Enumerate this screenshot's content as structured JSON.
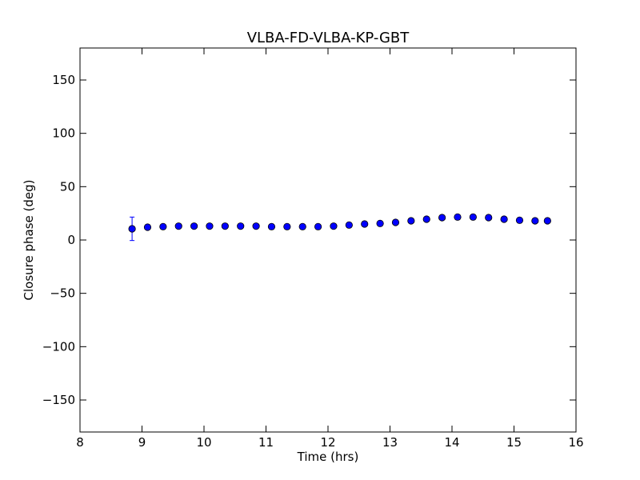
{
  "chart_data": {
    "type": "scatter",
    "title": "VLBA-FD-VLBA-KP-GBT",
    "xlabel": "Time (hrs)",
    "ylabel": "Closure phase (deg)",
    "xlim": [
      8,
      16
    ],
    "ylim": [
      -180,
      180
    ],
    "xticks": [
      8,
      9,
      10,
      11,
      12,
      13,
      14,
      15,
      16
    ],
    "xtick_labels": [
      "8",
      "9",
      "10",
      "11",
      "12",
      "13",
      "14",
      "15",
      "16"
    ],
    "yticks": [
      -150,
      -100,
      -50,
      0,
      50,
      100,
      150
    ],
    "ytick_labels": [
      "−150",
      "−100",
      "−50",
      "0",
      "50",
      "100",
      "150"
    ],
    "grid": false,
    "legend": "none",
    "marker_color": "#0000ff",
    "points": [
      {
        "x": 8.84,
        "y": 10.5,
        "err": 11
      },
      {
        "x": 9.09,
        "y": 12,
        "err": 1.5
      },
      {
        "x": 9.34,
        "y": 12.5,
        "err": 1.5
      },
      {
        "x": 9.59,
        "y": 13,
        "err": 1.5
      },
      {
        "x": 9.84,
        "y": 13,
        "err": 1.5
      },
      {
        "x": 10.09,
        "y": 13,
        "err": 1.5
      },
      {
        "x": 10.34,
        "y": 13,
        "err": 1.5
      },
      {
        "x": 10.59,
        "y": 13,
        "err": 1.5
      },
      {
        "x": 10.84,
        "y": 13,
        "err": 1.5
      },
      {
        "x": 11.09,
        "y": 12.5,
        "err": 1.5
      },
      {
        "x": 11.34,
        "y": 12.5,
        "err": 1.5
      },
      {
        "x": 11.59,
        "y": 12.5,
        "err": 1.5
      },
      {
        "x": 11.84,
        "y": 12.5,
        "err": 1.5
      },
      {
        "x": 12.09,
        "y": 13,
        "err": 1.5
      },
      {
        "x": 12.34,
        "y": 14,
        "err": 1.5
      },
      {
        "x": 12.59,
        "y": 15,
        "err": 1.5
      },
      {
        "x": 12.84,
        "y": 15.5,
        "err": 1.5
      },
      {
        "x": 13.09,
        "y": 16.5,
        "err": 1.5
      },
      {
        "x": 13.34,
        "y": 18,
        "err": 1.5
      },
      {
        "x": 13.59,
        "y": 19.5,
        "err": 1.5
      },
      {
        "x": 13.84,
        "y": 21,
        "err": 1.5
      },
      {
        "x": 14.09,
        "y": 21.5,
        "err": 1.5
      },
      {
        "x": 14.34,
        "y": 21.5,
        "err": 1.5
      },
      {
        "x": 14.59,
        "y": 21,
        "err": 1.5
      },
      {
        "x": 14.84,
        "y": 19.5,
        "err": 1.5
      },
      {
        "x": 15.09,
        "y": 18.5,
        "err": 1.5
      },
      {
        "x": 15.34,
        "y": 18,
        "err": 1.5
      },
      {
        "x": 15.54,
        "y": 18,
        "err": 1.5
      }
    ]
  }
}
